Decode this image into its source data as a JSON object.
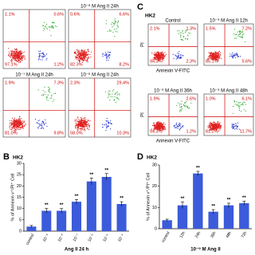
{
  "left_plots": [
    {
      "quadrants": {
        "ul": "1.1%",
        "ur": "0.6%",
        "ll": "97.1%",
        "lr": "1.2%"
      }
    },
    {
      "label": "10⁻⁸ M Ang II 24h",
      "quadrants": {
        "ul": "0.6%",
        "ur": "6.6%",
        "ll": "82.3%",
        "lr": "8.2%"
      }
    },
    {
      "label": "10⁻⁷ M Ang II 24h",
      "quadrants": {
        "ul": "1.9%",
        "ur": "7.3%",
        "ll": "81.0%",
        "lr": "9.8%"
      }
    },
    {
      "label": "10⁻⁶ M Ang II 24h",
      "quadrants": {
        "ul": "2.3%",
        "ur": "29.4%",
        "ll": "58.0%",
        "lr": "10.3%"
      }
    }
  ],
  "panel_c": {
    "letter": "C",
    "cell": "HK2",
    "y_label": "PI",
    "x_label": "Annexin V-FITC",
    "plots": [
      {
        "label": "Control",
        "quadrants": {
          "ul": "2.1%",
          "ur": "1.3%",
          "ll": "94.3%",
          "lr": "2.3%"
        }
      },
      {
        "label": "10⁻⁹ M Ang II 12h",
        "quadrants": {
          "ul": "1.5%",
          "ur": "7.2%",
          "ll": "85.1%",
          "lr": "5.6%"
        }
      },
      {
        "label": "10⁻⁹ M Ang II 36h",
        "quadrants": {
          "ul": "1.9%",
          "ur": "2.6%",
          "ll": "94.3%",
          "lr": "1.2%"
        }
      },
      {
        "label": "10⁻⁹ M Ang II 48h",
        "quadrants": {
          "ul": "1.0%",
          "ur": "6.1%",
          "ll": "81.2%",
          "lr": "11.7%"
        }
      }
    ]
  },
  "panel_b": {
    "letter": "B",
    "cell": "HK2",
    "type": "bar",
    "y_label": "% of Annexin v⁺/PI⁺ Cell",
    "x_label": "Ang II 24 h",
    "color": "#3b5bdb",
    "categories": [
      "control",
      "10⁻⁹",
      "10⁻⁸",
      "10⁻⁷",
      "10⁻⁶",
      "10⁻⁵",
      "10⁻⁴"
    ],
    "values": [
      2,
      9,
      9,
      13,
      22,
      24,
      12
    ],
    "errors": [
      0.5,
      1,
      1,
      1,
      1.5,
      1.5,
      1
    ],
    "annotations": [
      null,
      "**",
      "**",
      "**",
      "**",
      "**",
      "**"
    ],
    "ylim": [
      0,
      30
    ],
    "yticks": [
      0,
      5,
      10,
      15,
      20,
      25,
      30
    ]
  },
  "panel_d": {
    "letter": "D",
    "cell": "HK2",
    "type": "bar",
    "y_label": "% of Annexin v⁺/PI⁺ Cell",
    "x_label": "10⁻⁹ M Ang II",
    "color": "#3b5bdb",
    "categories": [
      "control",
      "12h",
      "24h",
      "36h",
      "48h",
      "72h"
    ],
    "values": [
      4,
      11,
      26,
      8,
      11,
      12
    ],
    "errors": [
      0.5,
      1.5,
      1,
      1,
      1,
      1
    ],
    "annotations": [
      null,
      "**",
      "**",
      "**",
      "**",
      "**"
    ],
    "ylim": [
      0,
      30
    ],
    "yticks": [
      0,
      10,
      20,
      30
    ]
  }
}
